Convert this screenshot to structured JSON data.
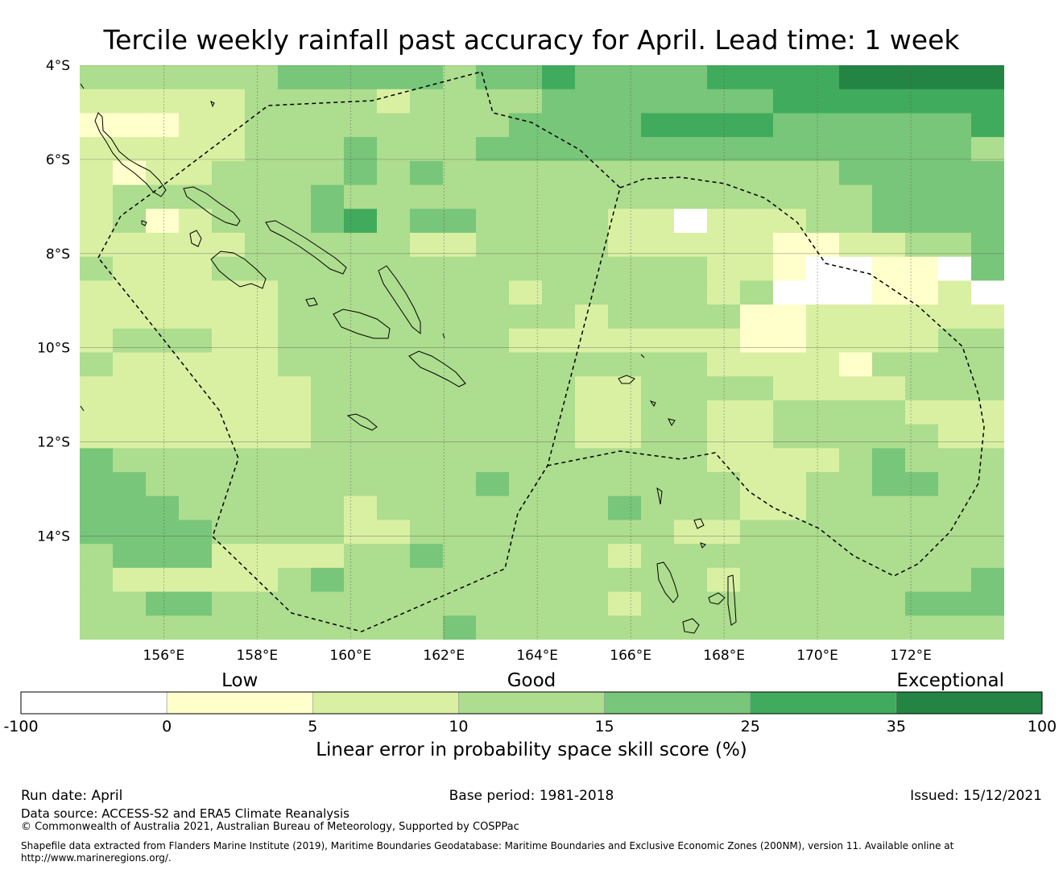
{
  "title": "Tercile weekly rainfall past accuracy for April. Lead time: 1 week",
  "map": {
    "lat_range": [
      -16.2,
      -4.0
    ],
    "lon_range": [
      154.2,
      174.0
    ],
    "cell_size_deg": 0.833,
    "lat_labels": [
      "4°S",
      "6°S",
      "8°S",
      "10°S",
      "12°S",
      "14°S"
    ],
    "lat_values": [
      -4,
      -6,
      -8,
      -10,
      -12,
      -14
    ],
    "lon_labels": [
      "156°E",
      "158°E",
      "160°E",
      "162°E",
      "164°E",
      "166°E",
      "168°E",
      "170°E",
      "172°E"
    ],
    "lon_values": [
      156,
      158,
      160,
      162,
      164,
      166,
      168,
      170,
      172
    ],
    "grid_category_rows": [
      "3333334444434454444555566666",
      "2222233332333344444445555555",
      "1112233333333444455554444445",
      "2222233343334444444444444443",
      "2122333343433333333333344444",
      "2333333433333333333333334444",
      "2312333453443333220222334444",
      "2222233333223333222221122334",
      "3222333333333333333221001104",
      "2222223333333233333230001120",
      "2222223333333332333311222222",
      "2333223333333222222211222233",
      "3222223333333333333222213333",
      "2222222333333332233332222333",
      "2222222333333332233223333222",
      "2222222333333332233223333322",
      "4333333333333333333222234333",
      "4433333333334333333322334433",
      "4443333323333333433322333333",
      "4444333322333333332233333333",
      "3444222233433333233333333333",
      "3222223433333333333233333334",
      "3344333333333333233333333444",
      "3333333333343333333333333333"
    ],
    "colors": [
      "#ffffff",
      "#ffffcc",
      "#d9f0a3",
      "#addd8e",
      "#78c679",
      "#41ab5d",
      "#238443"
    ]
  },
  "colorbar": {
    "category_labels": [
      "Low",
      "Good",
      "Exceptional"
    ],
    "tick_labels": [
      "-100",
      "0",
      "5",
      "10",
      "15",
      "25",
      "35",
      "100"
    ],
    "colors": [
      "#ffffff",
      "#ffffcc",
      "#d9f0a3",
      "#addd8e",
      "#78c679",
      "#41ab5d",
      "#238443"
    ],
    "label": "Linear error in probability space skill score (%)"
  },
  "footer": {
    "run_date": "Run date: April",
    "base_period": "Base period: 1981-2018",
    "issued": "Issued: 15/12/2021",
    "data_source": "Data source: ACCESS-S2 and ERA5 Climate Reanalysis",
    "copyright": "© Commonwealth of Australia 2021, Australian Bureau of Meteorology, Supported by COSPPac",
    "shapefile_line1": "Shapefile data extracted from Flanders Marine Institute (2019), Maritime Boundaries Geodatabase: Maritime Boundaries and Exclusive Economic Zones (200NM), version 11. Available online at",
    "shapefile_line2": "http://www.marineregions.org/."
  }
}
